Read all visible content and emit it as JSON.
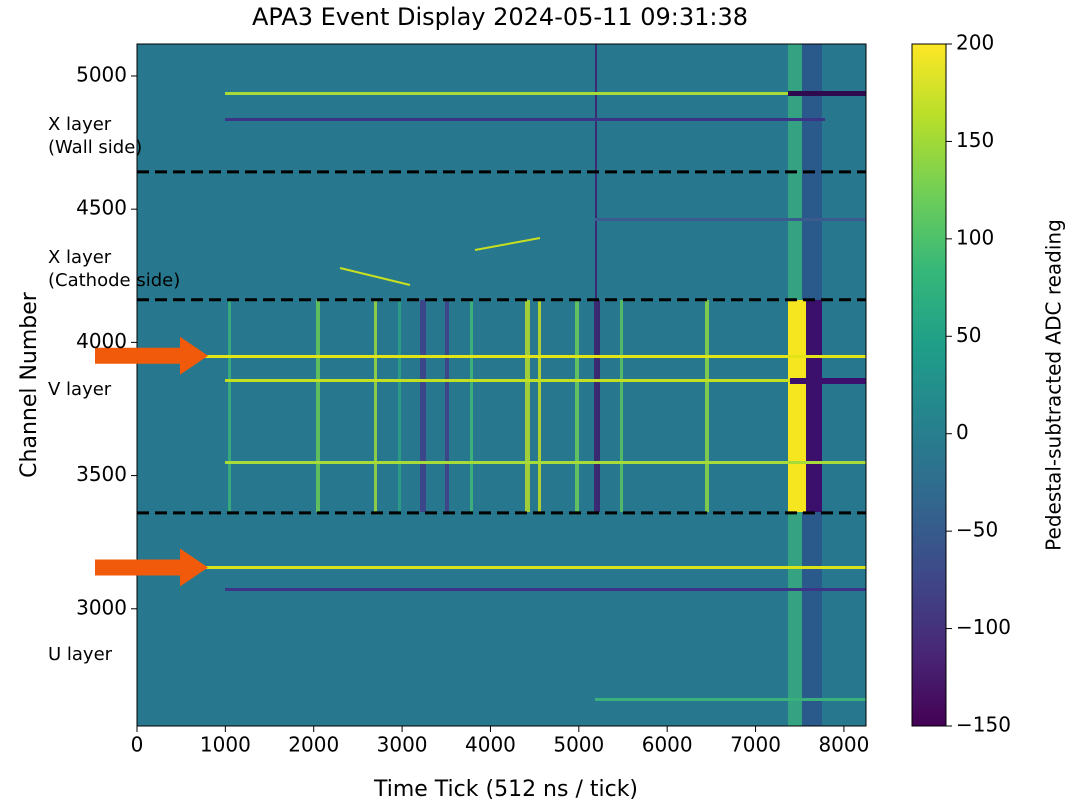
{
  "chart_data": {
    "type": "heatmap",
    "title": "APA3 Event Display 2024-05-11 09:31:38",
    "x_label": "Time Tick (512 ns / tick)",
    "y_label": "Channel Number",
    "colorbar_label": "Pedestal-subtracted ADC reading",
    "colormap": "viridis",
    "xlim": [
      0,
      8250
    ],
    "xticks": [
      0,
      1000,
      2000,
      3000,
      4000,
      5000,
      6000,
      7000,
      8000
    ],
    "ylim": [
      2560,
      5120
    ],
    "yticks": [
      3000,
      3500,
      4000,
      4500,
      5000
    ],
    "clim": [
      -150,
      200
    ],
    "cticks": [
      {
        "value": -150,
        "label": "−150"
      },
      {
        "value": -100,
        "label": "−100"
      },
      {
        "value": -50,
        "label": "−50"
      },
      0,
      50,
      100,
      150,
      200
    ],
    "boundaries": [
      4640,
      4160,
      3360
    ],
    "layer_labels": [
      [
        "X layer",
        "(Wall side)"
      ],
      [
        "X layer",
        "(Cathode side)"
      ],
      [
        "V layer"
      ],
      [
        "U layer"
      ]
    ],
    "arrows": [
      3950,
      3155
    ]
  }
}
